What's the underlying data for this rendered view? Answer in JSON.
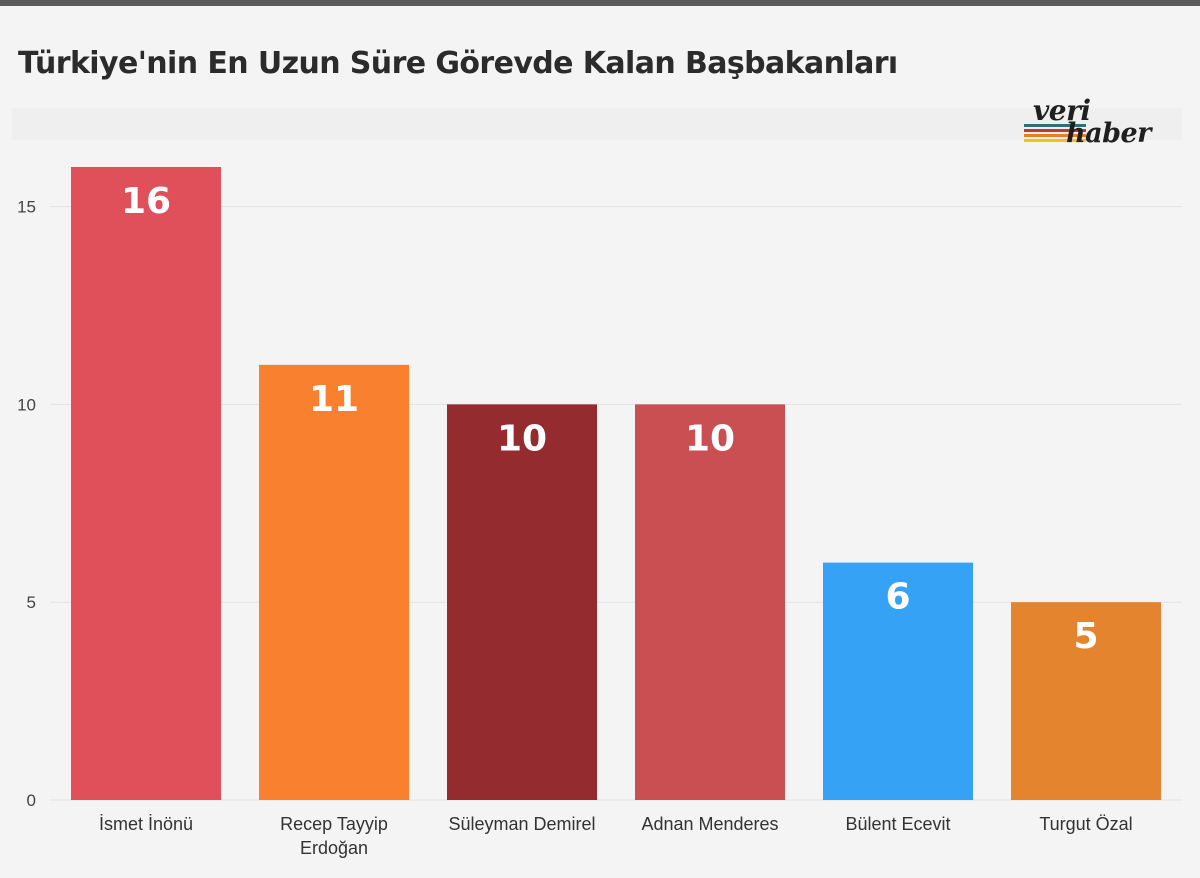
{
  "title": "Türkiye'nin En Uzun Süre Görevde Kalan Başbakanları",
  "logo": {
    "line1": "veri",
    "line2": "haber",
    "stripe_colors": [
      "#2e6e7e",
      "#c0392b",
      "#e67e22",
      "#f1c40f"
    ]
  },
  "chart_data": {
    "type": "bar",
    "title": "Türkiye'nin En Uzun Süre Görevde Kalan Başbakanları",
    "categories": [
      [
        "İsmet İnönü"
      ],
      [
        "Recep Tayyip",
        "Erdoğan"
      ],
      [
        "Süleyman Demirel"
      ],
      [
        "Adnan Menderes"
      ],
      [
        "Bülent Ecevit"
      ],
      [
        "Turgut Özal"
      ]
    ],
    "values": [
      16,
      11,
      10,
      10,
      6,
      5
    ],
    "data_labels": [
      "16",
      "11",
      "10",
      "10",
      "6",
      "5"
    ],
    "colors": [
      "#e0505a",
      "#f8802f",
      "#942c2f",
      "#c94f52",
      "#36a2f5",
      "#e5842f"
    ],
    "y_ticks": [
      0,
      5,
      10,
      15
    ],
    "ylim": [
      0,
      16
    ],
    "xlabel": "",
    "ylabel": "",
    "grid": true
  }
}
